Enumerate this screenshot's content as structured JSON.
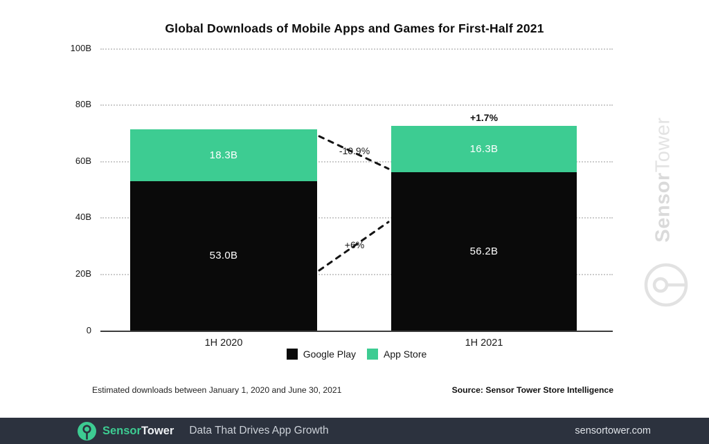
{
  "title": "Global Downloads of Mobile Apps and Games for First-Half 2021",
  "chart_data": {
    "type": "bar",
    "stacked": true,
    "title": "Global Downloads of Mobile Apps and Games for First-Half 2021",
    "categories": [
      "1H 2020",
      "1H 2021"
    ],
    "series": [
      {
        "name": "Google Play",
        "color": "#0a0a0a",
        "values": [
          53.0,
          56.2
        ],
        "value_labels": [
          "53.0B",
          "56.2B"
        ]
      },
      {
        "name": "App Store",
        "color": "#3dcc92",
        "values": [
          18.3,
          16.3
        ],
        "value_labels": [
          "18.3B",
          "16.3B"
        ]
      }
    ],
    "totals": [
      71.3,
      72.5
    ],
    "ylim": [
      0,
      100
    ],
    "yticks": {
      "labels": [
        "100B",
        "80B",
        "60B",
        "40B",
        "20B",
        "0"
      ],
      "values": [
        100,
        80,
        60,
        40,
        20,
        0
      ]
    },
    "grid": "horizontal-dotted",
    "legend_position": "bottom-center",
    "annotations": {
      "app_store_change": "-10.9%",
      "google_play_change": "+6%",
      "total_change_2021": "+1.7%"
    }
  },
  "legend": {
    "items": [
      {
        "label": "Google Play",
        "color": "#0a0a0a"
      },
      {
        "label": "App Store",
        "color": "#3dcc92"
      }
    ]
  },
  "notes": {
    "left": "Estimated downloads between January 1, 2020 and June 30, 2021",
    "right": "Source: Sensor Tower Store Intelligence"
  },
  "watermark": {
    "bold": "Sensor",
    "light": "Tower"
  },
  "footer": {
    "brand_bold": "Sensor",
    "brand_light": "Tower",
    "tagline": "Data That Drives App Growth",
    "url": "sensortower.com",
    "bg": "#2c323e",
    "accent": "#3dcc92"
  }
}
